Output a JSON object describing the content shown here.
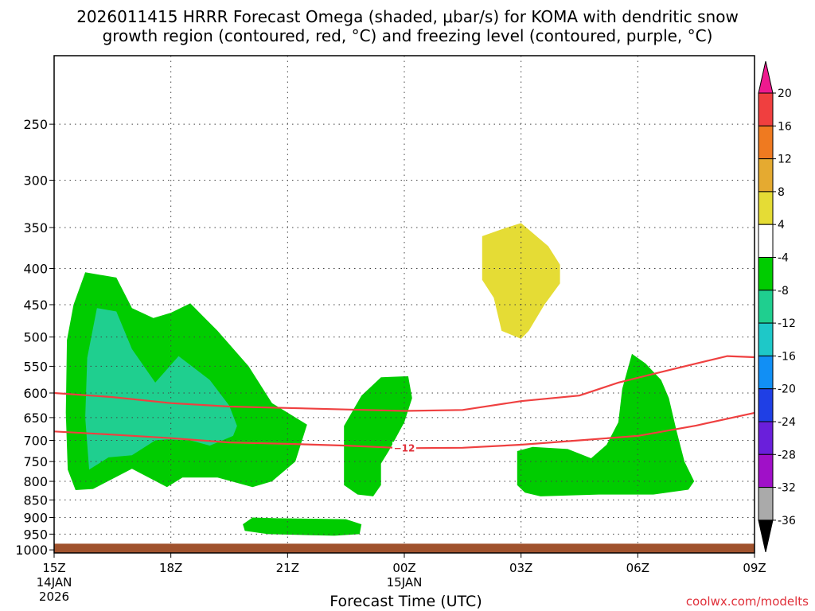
{
  "chart_data": {
    "type": "time-height cross section (filled contour)",
    "title_line1": "2026011415 HRRR Forecast Omega (shaded, μbar/s) for KOMA with dendritic snow",
    "title_line2": "growth region (contoured, red, °C) and freezing level (contoured, purple, °C)",
    "xlabel": "Forecast Time (UTC)",
    "ylabel": "",
    "credit": "coolwx.com/modelts",
    "x_ticks": [
      {
        "hour": 0,
        "label": "15Z",
        "date_line1": "14JAN",
        "date_line2": "2026"
      },
      {
        "hour": 3,
        "label": "18Z",
        "date_line1": "",
        "date_line2": ""
      },
      {
        "hour": 6,
        "label": "21Z",
        "date_line1": "",
        "date_line2": ""
      },
      {
        "hour": 9,
        "label": "00Z",
        "date_line1": "15JAN",
        "date_line2": ""
      },
      {
        "hour": 12,
        "label": "03Z",
        "date_line1": "",
        "date_line2": ""
      },
      {
        "hour": 15,
        "label": "06Z",
        "date_line1": "",
        "date_line2": ""
      },
      {
        "hour": 18,
        "label": "09Z",
        "date_line1": "",
        "date_line2": ""
      }
    ],
    "xlim_hours": [
      0,
      18
    ],
    "y_ticks": [
      "250",
      "300",
      "350",
      "400",
      "450",
      "500",
      "550",
      "600",
      "650",
      "700",
      "750",
      "800",
      "850",
      "900",
      "950",
      "1000"
    ],
    "ylim_hpa": [
      200,
      1010
    ],
    "y_scale": "log-pressure",
    "grid": true,
    "ground_color": "#a0522d",
    "ground_top_hpa": 980,
    "colorbar": {
      "labels": [
        "20",
        "16",
        "12",
        "8",
        "4",
        "-4",
        "-8",
        "-12",
        "-16",
        "-20",
        "-24",
        "-28",
        "-32",
        "-36"
      ],
      "colors": [
        "#ee1a8f",
        "#f03f3f",
        "#ef7a20",
        "#e5aa30",
        "#e5dc35",
        "#ffffff",
        "#00cc00",
        "#1fcf8f",
        "#1ec8c8",
        "#118ff5",
        "#1f3fe5",
        "#6a1fdb",
        "#a010c8",
        "#aaaaaa",
        "#000000"
      ],
      "placement": "right"
    },
    "omega_regions": [
      {
        "level": "-8 to -4",
        "color": "#00cc00",
        "points": [
          [
            0.55,
            823
          ],
          [
            0.35,
            770
          ],
          [
            0.3,
            640
          ],
          [
            0.33,
            505
          ],
          [
            0.5,
            450
          ],
          [
            0.8,
            405
          ],
          [
            1.6,
            412
          ],
          [
            2.0,
            455
          ],
          [
            2.55,
            470
          ],
          [
            3.0,
            462
          ],
          [
            3.5,
            448
          ],
          [
            4.2,
            490
          ],
          [
            5.0,
            550
          ],
          [
            5.6,
            620
          ],
          [
            6.5,
            665
          ],
          [
            6.2,
            750
          ],
          [
            5.6,
            800
          ],
          [
            5.1,
            815
          ],
          [
            4.2,
            790
          ],
          [
            3.3,
            790
          ],
          [
            2.9,
            815
          ],
          [
            2.0,
            768
          ],
          [
            1.0,
            820
          ]
        ]
      },
      {
        "level": "-12 to -8",
        "color": "#1fcf8f",
        "points": [
          [
            0.9,
            770
          ],
          [
            0.8,
            650
          ],
          [
            0.85,
            535
          ],
          [
            1.1,
            455
          ],
          [
            1.6,
            460
          ],
          [
            2.0,
            520
          ],
          [
            2.6,
            580
          ],
          [
            3.2,
            532
          ],
          [
            4.0,
            575
          ],
          [
            4.5,
            625
          ],
          [
            4.7,
            668
          ],
          [
            4.6,
            690
          ],
          [
            4.0,
            712
          ],
          [
            3.5,
            700
          ],
          [
            2.9,
            698
          ],
          [
            2.6,
            700
          ],
          [
            2.0,
            735
          ],
          [
            1.4,
            740
          ]
        ]
      },
      {
        "level": "-8 to -4",
        "color": "#00cc00",
        "points": [
          [
            4.85,
            920
          ],
          [
            5.1,
            900
          ],
          [
            5.7,
            902
          ],
          [
            7.5,
            905
          ],
          [
            7.9,
            920
          ],
          [
            7.85,
            950
          ],
          [
            7.2,
            955
          ],
          [
            6.5,
            953
          ],
          [
            5.5,
            950
          ],
          [
            4.9,
            940
          ]
        ]
      },
      {
        "level": "-8 to -4",
        "color": "#00cc00",
        "points": [
          [
            7.45,
            810
          ],
          [
            7.45,
            740
          ],
          [
            7.45,
            668
          ],
          [
            7.9,
            605
          ],
          [
            8.4,
            570
          ],
          [
            9.1,
            568
          ],
          [
            9.2,
            610
          ],
          [
            9.0,
            660
          ],
          [
            8.6,
            725
          ],
          [
            8.4,
            755
          ],
          [
            8.4,
            810
          ],
          [
            8.2,
            840
          ],
          [
            7.8,
            835
          ]
        ]
      },
      {
        "level": "-8 to -4",
        "color": "#00cc00",
        "points": [
          [
            11.9,
            810
          ],
          [
            11.9,
            725
          ],
          [
            12.3,
            715
          ],
          [
            13.2,
            720
          ],
          [
            13.8,
            742
          ],
          [
            14.2,
            710
          ],
          [
            14.5,
            660
          ],
          [
            14.6,
            592
          ],
          [
            14.85,
            528
          ],
          [
            15.2,
            545
          ],
          [
            15.6,
            575
          ],
          [
            15.8,
            610
          ],
          [
            16.0,
            680
          ],
          [
            16.2,
            750
          ],
          [
            16.45,
            800
          ],
          [
            16.3,
            822
          ],
          [
            15.4,
            835
          ],
          [
            14.0,
            835
          ],
          [
            12.5,
            840
          ],
          [
            12.1,
            830
          ]
        ]
      },
      {
        "level": "4 to 8",
        "color": "#e5dc35",
        "points": [
          [
            11.0,
            360
          ],
          [
            11.5,
            352
          ],
          [
            12.0,
            345
          ],
          [
            12.7,
            372
          ],
          [
            13.0,
            395
          ],
          [
            13.0,
            420
          ],
          [
            12.6,
            450
          ],
          [
            12.2,
            490
          ],
          [
            12.0,
            503
          ],
          [
            11.5,
            490
          ],
          [
            11.3,
            440
          ],
          [
            11.0,
            415
          ]
        ]
      }
    ],
    "isotherms": [
      {
        "value": -12,
        "label": "−12",
        "color": "#ef4040",
        "hours": [
          0,
          1.5,
          3,
          4.5,
          6,
          7.5,
          9,
          10.5,
          12,
          13.5,
          15,
          16.5,
          18
        ],
        "pressure_hpa": [
          680,
          687,
          695,
          705,
          708,
          712,
          718,
          717,
          710,
          700,
          690,
          667,
          640
        ]
      },
      {
        "value": -18,
        "label": "",
        "color": "#ef4040",
        "hours": [
          0,
          1.5,
          3,
          4.5,
          6,
          7.5,
          9,
          10.5,
          12,
          13.5,
          14.5,
          15.5,
          16.5,
          17.3,
          18
        ],
        "pressure_hpa": [
          600,
          608,
          620,
          627,
          630,
          633,
          636,
          634,
          616,
          605,
          580,
          562,
          545,
          532,
          534
        ]
      }
    ]
  }
}
